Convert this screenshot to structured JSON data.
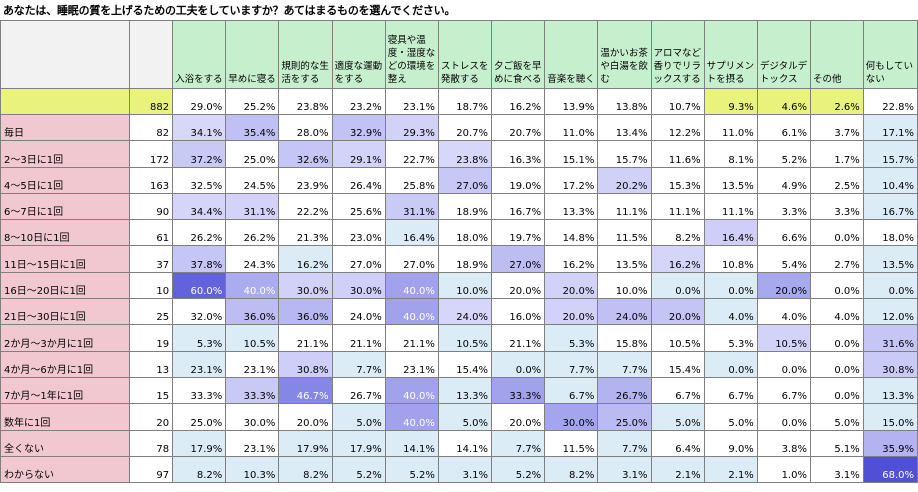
{
  "title": "あなたは、睡眠の質を上げるための工夫をしていますか？あてはまるものを選んでください。",
  "colors": {
    "header_bg": "#c6efce",
    "total_row_bg": "#eaf27e",
    "label_bg": "#f2c8d0",
    "heat_low": "#ffffff",
    "heat_high": "#4b4bd4",
    "heat_highest": "#3535c8"
  },
  "headers": [
    "入浴をする",
    "早めに寝る",
    "規則的な生活をする",
    "適度な運動をする",
    "寝具や温度・湿度などの環境を整え",
    "ストレスを発散する",
    "夕ご飯を早めに食べる",
    "音楽を聴く",
    "温かいお茶や白湯を飲む",
    "アロマなど香りでリラックスする",
    "サプリメントを摂る",
    "デジタルデトックス",
    "その他",
    "何もしていない"
  ],
  "total": {
    "n": "882",
    "values": [
      "29.0%",
      "25.2%",
      "23.8%",
      "23.2%",
      "23.1%",
      "18.7%",
      "16.2%",
      "13.9%",
      "13.8%",
      "10.7%",
      "9.3%",
      "4.6%",
      "2.6%",
      "22.8%"
    ]
  },
  "rows": [
    {
      "label": "毎日",
      "n": "82",
      "values": [
        "34.1%",
        "35.4%",
        "28.0%",
        "32.9%",
        "29.3%",
        "20.7%",
        "20.7%",
        "11.0%",
        "13.4%",
        "12.2%",
        "11.0%",
        "6.1%",
        "3.7%",
        "17.1%"
      ]
    },
    {
      "label": "2～3日に1回",
      "n": "172",
      "values": [
        "37.2%",
        "25.0%",
        "32.6%",
        "29.1%",
        "22.7%",
        "23.8%",
        "16.3%",
        "15.1%",
        "15.7%",
        "11.6%",
        "8.1%",
        "5.2%",
        "1.7%",
        "15.7%"
      ]
    },
    {
      "label": "4～5日に1回",
      "n": "163",
      "values": [
        "32.5%",
        "24.5%",
        "23.9%",
        "26.4%",
        "25.8%",
        "27.0%",
        "19.0%",
        "17.2%",
        "20.2%",
        "15.3%",
        "13.5%",
        "4.9%",
        "2.5%",
        "10.4%"
      ]
    },
    {
      "label": "6～7日に1回",
      "n": "90",
      "values": [
        "34.4%",
        "31.1%",
        "22.2%",
        "25.6%",
        "31.1%",
        "18.9%",
        "16.7%",
        "13.3%",
        "11.1%",
        "11.1%",
        "11.1%",
        "3.3%",
        "3.3%",
        "16.7%"
      ]
    },
    {
      "label": "8～10日に1回",
      "n": "61",
      "values": [
        "26.2%",
        "26.2%",
        "21.3%",
        "23.0%",
        "16.4%",
        "18.0%",
        "19.7%",
        "14.8%",
        "11.5%",
        "8.2%",
        "16.4%",
        "6.6%",
        "0.0%",
        "18.0%"
      ]
    },
    {
      "label": "11日～15日に1回",
      "n": "37",
      "values": [
        "37.8%",
        "24.3%",
        "16.2%",
        "27.0%",
        "27.0%",
        "18.9%",
        "27.0%",
        "16.2%",
        "13.5%",
        "16.2%",
        "10.8%",
        "5.4%",
        "2.7%",
        "13.5%"
      ]
    },
    {
      "label": "16日～20日に1回",
      "n": "10",
      "values": [
        "60.0%",
        "40.0%",
        "30.0%",
        "30.0%",
        "40.0%",
        "10.0%",
        "20.0%",
        "20.0%",
        "10.0%",
        "0.0%",
        "0.0%",
        "20.0%",
        "0.0%",
        "0.0%"
      ]
    },
    {
      "label": "21日～30日に1回",
      "n": "25",
      "values": [
        "32.0%",
        "36.0%",
        "36.0%",
        "24.0%",
        "40.0%",
        "24.0%",
        "16.0%",
        "20.0%",
        "24.0%",
        "20.0%",
        "4.0%",
        "4.0%",
        "4.0%",
        "12.0%"
      ]
    },
    {
      "label": "2か月～3か月に1回",
      "n": "19",
      "values": [
        "5.3%",
        "10.5%",
        "21.1%",
        "21.1%",
        "21.1%",
        "10.5%",
        "21.1%",
        "5.3%",
        "15.8%",
        "10.5%",
        "5.3%",
        "10.5%",
        "0.0%",
        "31.6%"
      ]
    },
    {
      "label": "4か月～6か月に1回",
      "n": "13",
      "values": [
        "23.1%",
        "23.1%",
        "30.8%",
        "7.7%",
        "23.1%",
        "15.4%",
        "0.0%",
        "7.7%",
        "7.7%",
        "15.4%",
        "0.0%",
        "0.0%",
        "0.0%",
        "30.8%"
      ]
    },
    {
      "label": "7か月～1年に1回",
      "n": "15",
      "values": [
        "33.3%",
        "33.3%",
        "46.7%",
        "26.7%",
        "40.0%",
        "13.3%",
        "33.3%",
        "6.7%",
        "26.7%",
        "6.7%",
        "6.7%",
        "6.7%",
        "0.0%",
        "13.3%"
      ]
    },
    {
      "label": "数年に1回",
      "n": "20",
      "values": [
        "25.0%",
        "30.0%",
        "20.0%",
        "5.0%",
        "40.0%",
        "5.0%",
        "20.0%",
        "30.0%",
        "25.0%",
        "5.0%",
        "5.0%",
        "0.0%",
        "5.0%",
        "15.0%"
      ]
    },
    {
      "label": "全くない",
      "n": "78",
      "values": [
        "17.9%",
        "23.1%",
        "17.9%",
        "17.9%",
        "14.1%",
        "14.1%",
        "7.7%",
        "11.5%",
        "7.7%",
        "6.4%",
        "9.0%",
        "3.8%",
        "5.1%",
        "35.9%"
      ]
    },
    {
      "label": "わからない",
      "n": "97",
      "values": [
        "8.2%",
        "10.3%",
        "8.2%",
        "5.2%",
        "5.2%",
        "3.1%",
        "5.2%",
        "8.2%",
        "3.1%",
        "2.1%",
        "2.1%",
        "1.0%",
        "3.1%",
        "68.0%"
      ]
    }
  ]
}
